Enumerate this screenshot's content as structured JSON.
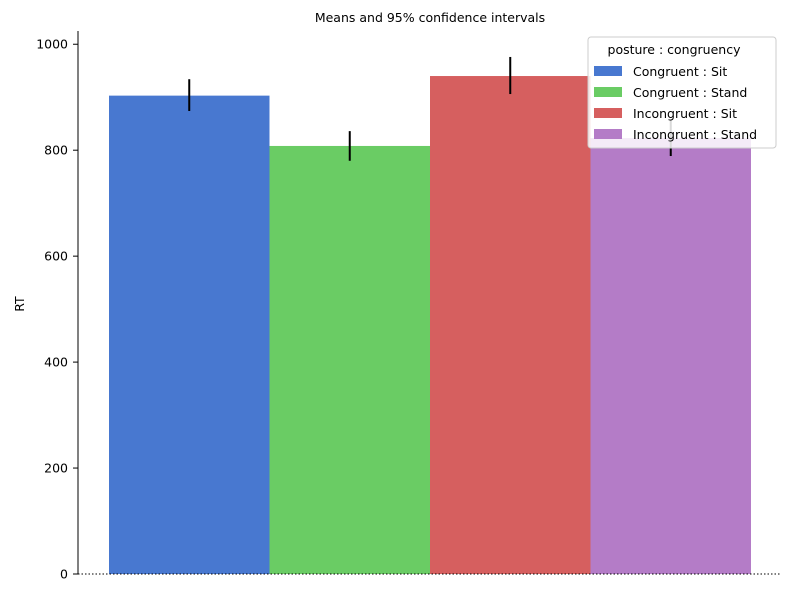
{
  "chart_data": {
    "type": "bar",
    "title": "Means and 95% confidence intervals",
    "xlabel": "",
    "ylabel": "RT",
    "ylim": [
      0,
      1025
    ],
    "yticks": [
      0,
      200,
      400,
      600,
      800,
      1000
    ],
    "legend_title": "posture : congruency",
    "legend_position": "top-right",
    "grid": false,
    "baseline_style": "dotted",
    "series": [
      {
        "name": "Congruent : Sit",
        "value": 903,
        "ci": [
          874,
          934
        ],
        "color": "#4878d0"
      },
      {
        "name": "Congruent : Stand",
        "value": 808,
        "ci": [
          780,
          836
        ],
        "color": "#6acc64"
      },
      {
        "name": "Incongruent : Sit",
        "value": 940,
        "ci": [
          906,
          976
        ],
        "color": "#d65f5f"
      },
      {
        "name": "Incongruent : Stand",
        "value": 823,
        "ci": [
          789,
          858
        ],
        "color": "#b47cc7"
      }
    ]
  }
}
